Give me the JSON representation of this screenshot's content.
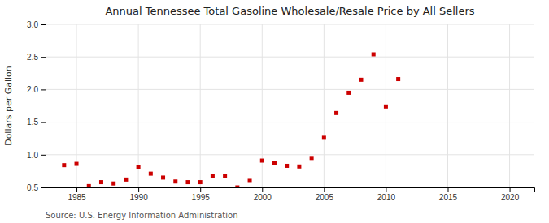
{
  "chart_data": {
    "type": "scatter",
    "title": "Annual Tennessee Total Gasoline Wholesale/Resale Price by All Sellers",
    "ylabel": "Dollars per Gallon",
    "annotations": [
      "Source: U.S. Energy Information Administration"
    ],
    "x": [
      1984,
      1985,
      1986,
      1987,
      1988,
      1989,
      1990,
      1991,
      1992,
      1993,
      1994,
      1995,
      1996,
      1997,
      1998,
      1999,
      2000,
      2001,
      2002,
      2003,
      2004,
      2005,
      2006,
      2007,
      2008,
      2009,
      2010,
      2011
    ],
    "values": [
      0.84,
      0.86,
      0.52,
      0.58,
      0.56,
      0.62,
      0.81,
      0.71,
      0.65,
      0.59,
      0.58,
      0.58,
      0.67,
      0.67,
      0.5,
      0.6,
      0.91,
      0.87,
      0.83,
      0.82,
      0.95,
      1.26,
      1.64,
      1.95,
      2.15,
      2.54,
      1.74,
      2.16
    ],
    "color": "#cc0000",
    "marker": "square",
    "xlim": [
      1982.5,
      2022
    ],
    "ylim": [
      0.5,
      3.0
    ],
    "xticks": [
      1985,
      1990,
      1995,
      2000,
      2005,
      2010,
      2015,
      2020
    ],
    "yticks": [
      0.5,
      {
        "value": 1.0,
        "label": "1.0"
      },
      1.5,
      {
        "value": 2.0,
        "label": "2.0"
      },
      2.5,
      {
        "value": 3.0,
        "label": "3.0"
      }
    ],
    "grid": true
  }
}
